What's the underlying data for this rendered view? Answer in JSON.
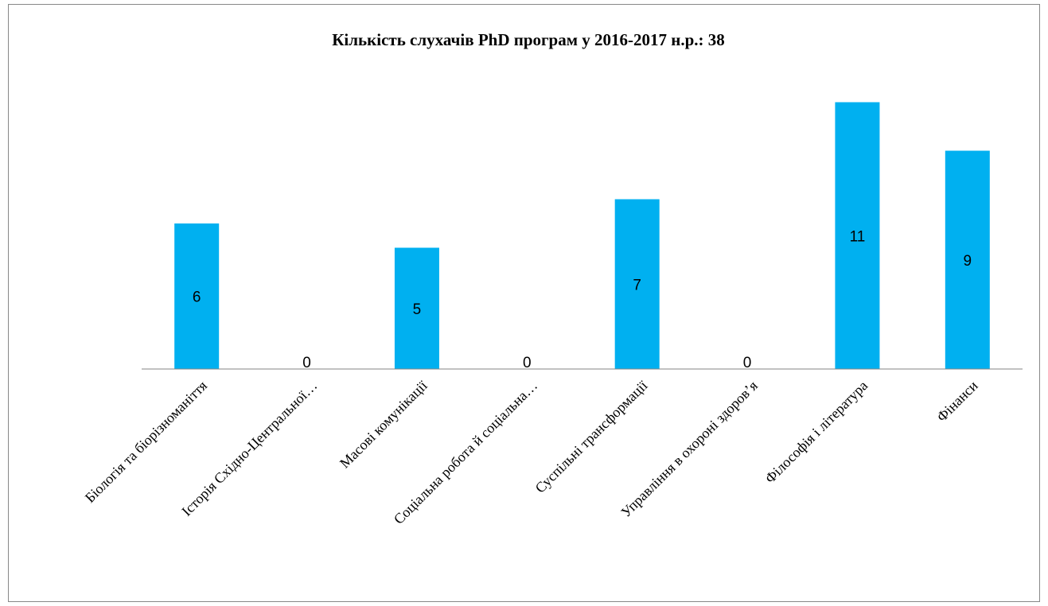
{
  "chart_data": {
    "type": "bar",
    "title": "Кількість слухачів PhD програм у 2016-2017 н.р.: 38",
    "categories": [
      "Біологія та біорізноманіття",
      "Історія Східно-Центральної…",
      "Масові комунікації",
      "Соціальна робота й соціальна…",
      "Суспільні трансформації",
      "Управління в охороні здоров’я",
      "Філософія і література",
      "Фінанси"
    ],
    "values": [
      6,
      0,
      5,
      0,
      7,
      0,
      11,
      9
    ],
    "color": "#00b0f0",
    "ylim": [
      0,
      12
    ]
  }
}
